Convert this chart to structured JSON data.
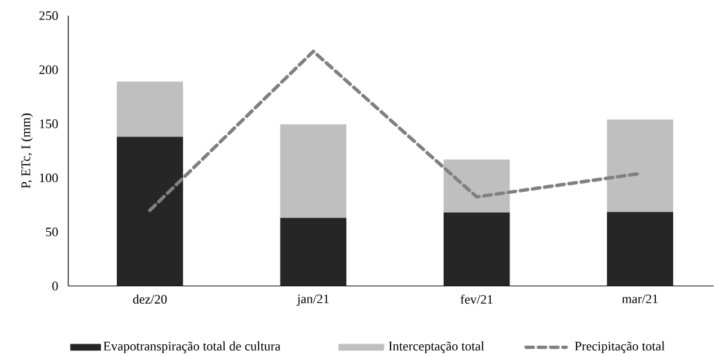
{
  "chart_data": {
    "type": "bar",
    "stacked": true,
    "ylabel": "P, ETc, I (mm)",
    "categories": [
      "dez/20",
      "jan/21",
      "fev/21",
      "mar/21"
    ],
    "series": [
      {
        "name": "Evapotranspiração total de cultura",
        "color": "#262626",
        "values": [
          138,
          63,
          68,
          68.4
        ]
      },
      {
        "name": "Interceptação total",
        "color": "#bfbfbf",
        "values": [
          51,
          86.5,
          49,
          85.6
        ]
      },
      {
        "name": "Precipitação total",
        "type": "line",
        "line_style": "dashed",
        "color": "#808080",
        "values": [
          70,
          217,
          82.4,
          104
        ]
      }
    ],
    "ylim": [
      0,
      250
    ],
    "yticks": [
      0,
      50,
      100,
      150,
      200,
      250
    ],
    "legend": "bottom",
    "grid": false
  }
}
